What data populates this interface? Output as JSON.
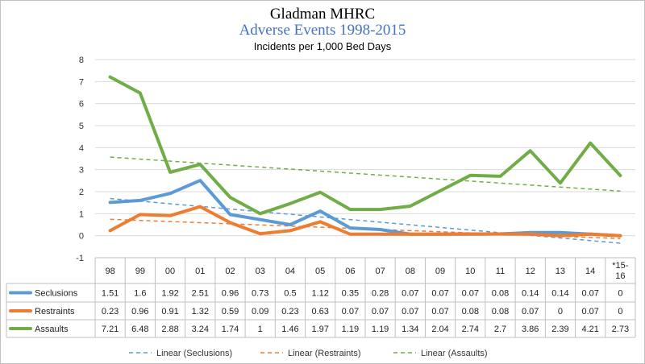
{
  "chart_data": {
    "type": "line",
    "title": "Gladman MHRC",
    "subtitle": "Adverse Events 1998-2015",
    "ylabel": "Incidents per 1,000 Bed Days",
    "ylim": [
      -1,
      8
    ],
    "yticks": [
      -1,
      0,
      1,
      2,
      3,
      4,
      5,
      6,
      7,
      8
    ],
    "categories": [
      "98",
      "99",
      "00",
      "01",
      "02",
      "03",
      "04",
      "05",
      "06",
      "07",
      "08",
      "09",
      "10",
      "11",
      "12",
      "13",
      "14",
      "*15-16"
    ],
    "series": [
      {
        "name": "Seclusions",
        "color": "#5b9bd5",
        "values": [
          1.51,
          1.6,
          1.92,
          2.51,
          0.96,
          0.73,
          0.5,
          1.12,
          0.35,
          0.28,
          0.07,
          0.07,
          0.07,
          0.08,
          0.14,
          0.14,
          0.07,
          0
        ]
      },
      {
        "name": "Restraints",
        "color": "#ed7d31",
        "values": [
          0.23,
          0.96,
          0.91,
          1.32,
          0.59,
          0.09,
          0.23,
          0.63,
          0.07,
          0.07,
          0.07,
          0.07,
          0.08,
          0.08,
          0.07,
          0,
          0.07,
          0
        ]
      },
      {
        "name": "Assaults",
        "color": "#70ad47",
        "values": [
          7.21,
          6.48,
          2.88,
          3.24,
          1.74,
          1,
          1.46,
          1.97,
          1.19,
          1.19,
          1.34,
          2.04,
          2.74,
          2.7,
          3.86,
          2.39,
          4.21,
          2.73
        ]
      }
    ],
    "trendlines": [
      {
        "name": "Linear (Seclusions)",
        "color": "#5b9bd5"
      },
      {
        "name": "Linear (Restraints)",
        "color": "#ed7d31"
      },
      {
        "name": "Linear (Assaults)",
        "color": "#70ad47"
      }
    ],
    "legend_position": "bottom"
  }
}
